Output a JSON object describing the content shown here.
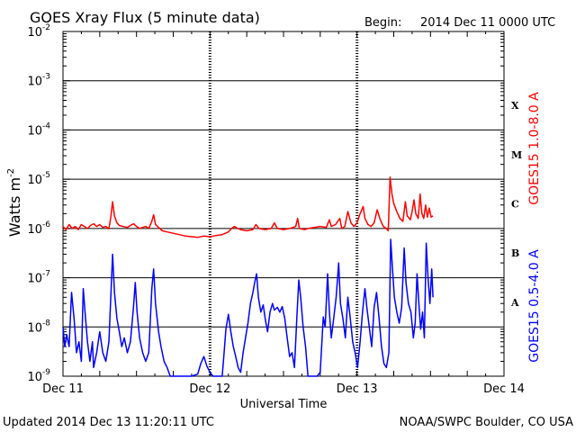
{
  "chart_data": {
    "type": "line",
    "title": "GOES Xray Flux (5 minute data)",
    "begin_label": "Begin:",
    "begin_value": "2014 Dec 11 0000 UTC",
    "xlabel": "Universal Time",
    "ylabel": "Watts m",
    "ylabel_sup": "-2",
    "y_scale": "log",
    "ylim": [
      1e-09,
      0.01
    ],
    "y_ticks": [
      {
        "mant": "10",
        "exp": "-2",
        "value": 0.01
      },
      {
        "mant": "10",
        "exp": "-3",
        "value": 0.001
      },
      {
        "mant": "10",
        "exp": "-4",
        "value": 0.0001
      },
      {
        "mant": "10",
        "exp": "-5",
        "value": 1e-05
      },
      {
        "mant": "10",
        "exp": "-6",
        "value": 1e-06
      },
      {
        "mant": "10",
        "exp": "-7",
        "value": 1e-07
      },
      {
        "mant": "10",
        "exp": "-8",
        "value": 1e-08
      },
      {
        "mant": "10",
        "exp": "-9",
        "value": 1e-09
      }
    ],
    "xlim_hours": [
      0,
      72
    ],
    "x_ticks": [
      {
        "label": "Dec 11",
        "hour": 0
      },
      {
        "label": "Dec 12",
        "hour": 24
      },
      {
        "label": "Dec 13",
        "hour": 48
      },
      {
        "label": "Dec 14",
        "hour": 72
      }
    ],
    "flare_classes": [
      {
        "label": "X",
        "value": 0.000316
      },
      {
        "label": "M",
        "value": 3.16e-05
      },
      {
        "label": "C",
        "value": 3.16e-06
      },
      {
        "label": "B",
        "value": 3.16e-07
      },
      {
        "label": "A",
        "value": 3.16e-08
      }
    ],
    "series": [
      {
        "name": "GOES15 1.0-8.0 A",
        "color": "#ff0000",
        "points": [
          [
            0,
            1.1e-06
          ],
          [
            0.5,
            9.5e-07
          ],
          [
            1,
            1.2e-06
          ],
          [
            1.5,
            1e-06
          ],
          [
            2,
            1.1e-06
          ],
          [
            2.5,
            9.5e-07
          ],
          [
            3,
            1.2e-06
          ],
          [
            3.5,
            1.1e-06
          ],
          [
            4,
            1e-06
          ],
          [
            4.5,
            1.15e-06
          ],
          [
            5,
            1.25e-06
          ],
          [
            5.5,
            1.1e-06
          ],
          [
            6,
            1.2e-06
          ],
          [
            6.5,
            1.05e-06
          ],
          [
            7,
            1.1e-06
          ],
          [
            7.5,
            9.8e-07
          ],
          [
            7.8,
            1.7e-06
          ],
          [
            8.1,
            3.5e-06
          ],
          [
            8.4,
            1.8e-06
          ],
          [
            8.8,
            1.3e-06
          ],
          [
            9.2,
            1.15e-06
          ],
          [
            9.8,
            1.1e-06
          ],
          [
            10.5,
            1.05e-06
          ],
          [
            11,
            1.15e-06
          ],
          [
            11.5,
            1.25e-06
          ],
          [
            12,
            1.1e-06
          ],
          [
            12.5,
            1e-06
          ],
          [
            13,
            1.05e-06
          ],
          [
            13.5,
            1.1e-06
          ],
          [
            14,
            1e-06
          ],
          [
            14.5,
            1.4e-06
          ],
          [
            14.8,
            1.9e-06
          ],
          [
            15.1,
            1.2e-06
          ],
          [
            15.6,
            1.05e-06
          ],
          [
            16.2,
            9e-07
          ],
          [
            17,
            8.5e-07
          ],
          [
            18,
            8e-07
          ],
          [
            19,
            7.5e-07
          ],
          [
            20,
            7e-07
          ],
          [
            21,
            6.8e-07
          ],
          [
            22,
            6.6e-07
          ],
          [
            23,
            7e-07
          ],
          [
            24,
            6.8e-07
          ],
          [
            25,
            7.2e-07
          ],
          [
            26,
            7.5e-07
          ],
          [
            27,
            8.5e-07
          ],
          [
            27.5,
            1e-06
          ],
          [
            28,
            1.1e-06
          ],
          [
            28.5,
            1e-06
          ],
          [
            29,
            9.5e-07
          ],
          [
            30,
            9e-07
          ],
          [
            31,
            9.5e-07
          ],
          [
            31.5,
            1.2e-06
          ],
          [
            32,
            1e-06
          ],
          [
            33,
            9.5e-07
          ],
          [
            34,
            1e-06
          ],
          [
            34.5,
            1.3e-06
          ],
          [
            35,
            1e-06
          ],
          [
            36,
            9.5e-07
          ],
          [
            37,
            1e-06
          ],
          [
            38,
            1.1e-06
          ],
          [
            38.3,
            1.6e-06
          ],
          [
            38.6,
            1e-06
          ],
          [
            39.5,
            9.5e-07
          ],
          [
            40,
            1e-06
          ],
          [
            41,
            1.05e-06
          ],
          [
            42,
            1.1e-06
          ],
          [
            43,
            1.05e-06
          ],
          [
            43.5,
            1.5e-06
          ],
          [
            43.8,
            1.1e-06
          ],
          [
            44.5,
            1.2e-06
          ],
          [
            45.2,
            1.6e-06
          ],
          [
            45.5,
            1e-06
          ],
          [
            46,
            1.1e-06
          ],
          [
            46.5,
            2.2e-06
          ],
          [
            47,
            1.3e-06
          ],
          [
            47.5,
            1.1e-06
          ],
          [
            48,
            1.3e-06
          ],
          [
            48.5,
            2e-06
          ],
          [
            49,
            2.8e-06
          ],
          [
            49.3,
            1.6e-06
          ],
          [
            49.8,
            1.2e-06
          ],
          [
            50.3,
            1.1e-06
          ],
          [
            50.8,
            1.3e-06
          ],
          [
            51.3,
            2.4e-06
          ],
          [
            51.8,
            1.5e-06
          ],
          [
            52.3,
            1.1e-06
          ],
          [
            52.8,
            1e-06
          ],
          [
            53.1,
            9e-07
          ],
          [
            53.4,
            1.1e-05
          ],
          [
            53.7,
            5e-06
          ],
          [
            54,
            3.2e-06
          ],
          [
            54.5,
            2.2e-06
          ],
          [
            55,
            1.6e-06
          ],
          [
            55.5,
            1.4e-06
          ],
          [
            55.9,
            3.5e-06
          ],
          [
            56.2,
            1.8e-06
          ],
          [
            56.7,
            1.5e-06
          ],
          [
            57,
            2.2e-06
          ],
          [
            57.3,
            3.8e-06
          ],
          [
            57.6,
            2e-06
          ],
          [
            58,
            1.6e-06
          ],
          [
            58.3,
            5e-06
          ],
          [
            58.6,
            2e-06
          ],
          [
            58.9,
            1.6e-06
          ],
          [
            59.2,
            3e-06
          ],
          [
            59.5,
            1.7e-06
          ],
          [
            59.8,
            2.6e-06
          ],
          [
            60.1,
            1.7e-06
          ],
          [
            60.4,
            1.8e-06
          ]
        ]
      },
      {
        "name": "GOES15 0.5-4.0 A",
        "color": "#0000ff",
        "points": [
          [
            0,
            1e-08
          ],
          [
            0.3,
            4e-09
          ],
          [
            0.6,
            7e-09
          ],
          [
            1,
            4e-09
          ],
          [
            1.4,
            5e-08
          ],
          [
            1.8,
            1.5e-08
          ],
          [
            2.2,
            3e-09
          ],
          [
            2.6,
            5e-09
          ],
          [
            3,
            2e-09
          ],
          [
            3.3,
            6e-08
          ],
          [
            3.6,
            2e-08
          ],
          [
            4,
            5e-09
          ],
          [
            4.4,
            2e-09
          ],
          [
            4.8,
            5e-09
          ],
          [
            5,
            1.5e-09
          ],
          [
            5.5,
            3e-09
          ],
          [
            6,
            8e-09
          ],
          [
            6.5,
            3e-09
          ],
          [
            7,
            2e-09
          ],
          [
            7.5,
            5e-09
          ],
          [
            7.8,
            4e-08
          ],
          [
            8.1,
            3e-07
          ],
          [
            8.4,
            5e-08
          ],
          [
            8.8,
            1.5e-08
          ],
          [
            9.2,
            8e-09
          ],
          [
            9.6,
            4e-09
          ],
          [
            10,
            6e-09
          ],
          [
            10.5,
            3e-09
          ],
          [
            11,
            5e-09
          ],
          [
            11.5,
            2.5e-08
          ],
          [
            11.8,
            8e-08
          ],
          [
            12.1,
            2e-08
          ],
          [
            12.5,
            6e-09
          ],
          [
            13,
            3e-09
          ],
          [
            13.5,
            2e-09
          ],
          [
            14,
            3e-09
          ],
          [
            14.5,
            6e-08
          ],
          [
            14.8,
            1.5e-07
          ],
          [
            15.1,
            3e-08
          ],
          [
            15.6,
            8e-09
          ],
          [
            16,
            4e-09
          ],
          [
            16.5,
            2e-09
          ],
          [
            17,
            1.5e-09
          ],
          [
            17.5,
            1e-09
          ],
          [
            18,
            9e-10
          ],
          [
            19,
            1e-09
          ],
          [
            20,
            9e-10
          ],
          [
            21,
            1e-09
          ],
          [
            22,
            1.1e-09
          ],
          [
            22.5,
            1.8e-09
          ],
          [
            23,
            2.5e-09
          ],
          [
            23.5,
            1.6e-09
          ],
          [
            24,
            1.2e-09
          ],
          [
            24.5,
            1e-09
          ],
          [
            25,
            9e-10
          ],
          [
            25.5,
            1e-09
          ],
          [
            26,
            9e-10
          ],
          [
            26.3,
            3e-09
          ],
          [
            26.6,
            9e-09
          ],
          [
            27,
            1.8e-08
          ],
          [
            27.4,
            8e-09
          ],
          [
            27.8,
            4e-09
          ],
          [
            28.2,
            2.5e-09
          ],
          [
            28.6,
            1.5e-09
          ],
          [
            29,
            1.2e-09
          ],
          [
            29.4,
            3e-09
          ],
          [
            29.8,
            6e-09
          ],
          [
            30.2,
            1.2e-08
          ],
          [
            30.6,
            3e-08
          ],
          [
            31,
            5e-08
          ],
          [
            31.3,
            8e-08
          ],
          [
            31.6,
            1.2e-07
          ],
          [
            31.9,
            4e-08
          ],
          [
            32.3,
            2e-08
          ],
          [
            32.7,
            2.8e-08
          ],
          [
            33,
            1.5e-08
          ],
          [
            33.4,
            8e-09
          ],
          [
            33.8,
            2e-08
          ],
          [
            34.2,
            3e-08
          ],
          [
            34.5,
            2.2e-08
          ],
          [
            35,
            2.5e-08
          ],
          [
            35.4,
            2e-08
          ],
          [
            35.8,
            2.6e-08
          ],
          [
            36.2,
            1.5e-08
          ],
          [
            36.6,
            6e-09
          ],
          [
            37,
            2.5e-09
          ],
          [
            37.4,
            3e-09
          ],
          [
            37.8,
            1.5e-09
          ],
          [
            38.2,
            1.8e-08
          ],
          [
            38.5,
            9e-08
          ],
          [
            38.8,
            4e-08
          ],
          [
            39.2,
            1e-08
          ],
          [
            39.6,
            4e-09
          ],
          [
            40,
            1e-09
          ],
          [
            40.5,
            9e-10
          ],
          [
            41,
            8e-10
          ],
          [
            41.5,
            9e-10
          ],
          [
            42,
            1.2e-09
          ],
          [
            42.5,
            1.6e-08
          ],
          [
            42.8,
            1e-08
          ],
          [
            43.2,
            1.2e-07
          ],
          [
            43.5,
            2e-08
          ],
          [
            43.8,
            6e-09
          ],
          [
            44.2,
            1.5e-08
          ],
          [
            44.6,
            4e-08
          ],
          [
            45,
            2e-07
          ],
          [
            45.3,
            3e-08
          ],
          [
            45.7,
            1.5e-08
          ],
          [
            46.1,
            6e-09
          ],
          [
            46.5,
            4e-08
          ],
          [
            46.9,
            1.5e-08
          ],
          [
            47.3,
            5e-09
          ],
          [
            47.7,
            3e-09
          ],
          [
            48.1,
            1.5e-09
          ],
          [
            48.5,
            5e-09
          ],
          [
            48.9,
            2e-08
          ],
          [
            49.3,
            6e-08
          ],
          [
            49.6,
            2.5e-08
          ],
          [
            50,
            1e-08
          ],
          [
            50.4,
            4e-09
          ],
          [
            50.8,
            2.5e-08
          ],
          [
            51.2,
            5e-08
          ],
          [
            51.6,
            1.5e-08
          ],
          [
            52,
            4e-09
          ],
          [
            52.4,
            1.8e-09
          ],
          [
            52.8,
            1.5e-09
          ],
          [
            53.2,
            3e-09
          ],
          [
            53.5,
            6e-07
          ],
          [
            53.8,
            1.5e-07
          ],
          [
            54.1,
            4e-08
          ],
          [
            54.5,
            2e-08
          ],
          [
            54.9,
            1.2e-08
          ],
          [
            55.3,
            2.5e-08
          ],
          [
            55.7,
            4e-07
          ],
          [
            56,
            8e-08
          ],
          [
            56.4,
            3e-08
          ],
          [
            56.8,
            2e-08
          ],
          [
            57.2,
            6e-09
          ],
          [
            57.5,
            1.2e-08
          ],
          [
            57.8,
            1.2e-07
          ],
          [
            58.1,
            3e-08
          ],
          [
            58.4,
            9e-09
          ],
          [
            58.7,
            2e-08
          ],
          [
            59,
            6e-09
          ],
          [
            59.3,
            5e-07
          ],
          [
            59.6,
            1e-07
          ],
          [
            59.9,
            3e-08
          ],
          [
            60.2,
            1.5e-07
          ],
          [
            60.4,
            4e-08
          ]
        ]
      }
    ]
  },
  "footer": {
    "updated": "Updated 2014 Dec 13 11:20:11 UTC",
    "credit": "NOAA/SWPC Boulder, CO USA"
  }
}
